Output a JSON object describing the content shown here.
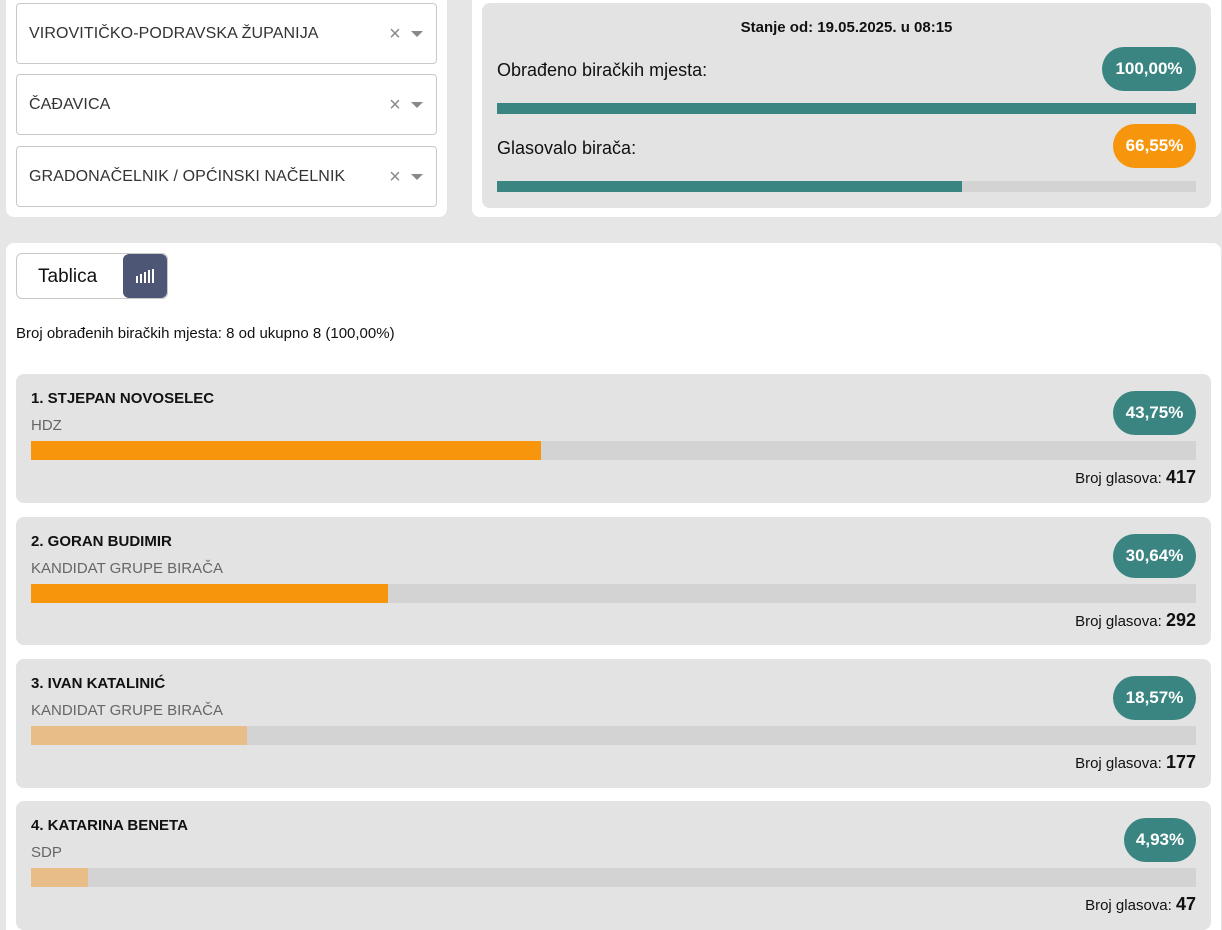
{
  "filters": {
    "county": "VIROVITIČKO-PODRAVSKA ŽUPANIJA",
    "municipality": "ČAĐAVICA",
    "election": "GRADONAČELNIK / OPĆINSKI NAČELNIK",
    "clear_glyph": "×"
  },
  "status": {
    "title": "Stanje od: 19.05.2025. u 08:15",
    "processed_label": "Obrađeno biračkih mjesta:",
    "processed_value": "100,00%",
    "processed_fraction": 1.0,
    "turnout_label": "Glasovalo birača:",
    "turnout_value": "66,55%",
    "turnout_fraction": 0.6655,
    "colors": {
      "teal": "#3a8581",
      "orange": "#f7960d"
    }
  },
  "view_toggle": {
    "table_label": "Tablica",
    "chart_icon": "bar-chart-icon"
  },
  "summary": "Broj obrađenih biračkih mjesta: 8 od ukupno 8 (100,00%)",
  "votes_label": "Broj glasova:",
  "candidates": [
    {
      "name": "1. STJEPAN NOVOSELEC",
      "party": "HDZ",
      "percent": "43,75%",
      "fraction": 0.4375,
      "votes": "417",
      "bar_color": "#f7960d"
    },
    {
      "name": "2. GORAN BUDIMIR",
      "party": "KANDIDAT GRUPE BIRAČA",
      "percent": "30,64%",
      "fraction": 0.3064,
      "votes": "292",
      "bar_color": "#f7960d"
    },
    {
      "name": "3. IVAN KATALINIĆ",
      "party": "KANDIDAT GRUPE BIRAČA",
      "percent": "18,57%",
      "fraction": 0.1857,
      "votes": "177",
      "bar_color": "#e8bd87"
    },
    {
      "name": "4. KATARINA BENETA",
      "party": "SDP",
      "percent": "4,93%",
      "fraction": 0.0493,
      "votes": "47",
      "bar_color": "#e8bd87"
    }
  ]
}
